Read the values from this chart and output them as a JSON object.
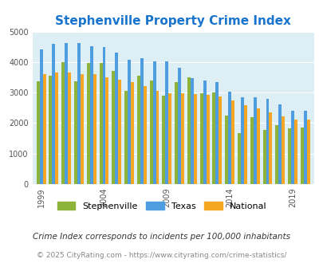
{
  "title": "Stephenville Property Crime Index",
  "title_color": "#1874cd",
  "years": [
    1999,
    2000,
    2001,
    2002,
    2003,
    2004,
    2005,
    2006,
    2007,
    2008,
    2009,
    2010,
    2011,
    2012,
    2013,
    2014,
    2015,
    2016,
    2017,
    2018,
    2019,
    2020
  ],
  "stephenville": [
    3380,
    3550,
    4000,
    3380,
    3970,
    3960,
    3700,
    3050,
    3550,
    3400,
    2900,
    3350,
    3490,
    2970,
    3000,
    2250,
    1660,
    2190,
    1780,
    1940,
    1830,
    1860
  ],
  "texas": [
    4420,
    4600,
    4620,
    4620,
    4510,
    4500,
    4310,
    4080,
    4130,
    4030,
    4020,
    3810,
    3470,
    3400,
    3350,
    3030,
    2850,
    2840,
    2790,
    2600,
    2400,
    2400
  ],
  "national": [
    3600,
    3660,
    3650,
    3610,
    3600,
    3500,
    3430,
    3340,
    3210,
    3050,
    2980,
    2970,
    2960,
    2930,
    2870,
    2740,
    2590,
    2490,
    2360,
    2220,
    2110,
    2110
  ],
  "bar_width": 0.25,
  "ylim": [
    0,
    5000
  ],
  "yticks": [
    0,
    1000,
    2000,
    3000,
    4000,
    5000
  ],
  "xtick_years": [
    1999,
    2004,
    2009,
    2014,
    2019
  ],
  "color_stephenville": "#8db33a",
  "color_texas": "#4d9de0",
  "color_national": "#f5a623",
  "bg_color": "#deeef5",
  "legend_labels": [
    "Stephenville",
    "Texas",
    "National"
  ],
  "footnote1": "Crime Index corresponds to incidents per 100,000 inhabitants",
  "footnote2": "© 2025 CityRating.com - https://www.cityrating.com/crime-statistics/",
  "footnote1_color": "#333333",
  "footnote2_color": "#888888"
}
